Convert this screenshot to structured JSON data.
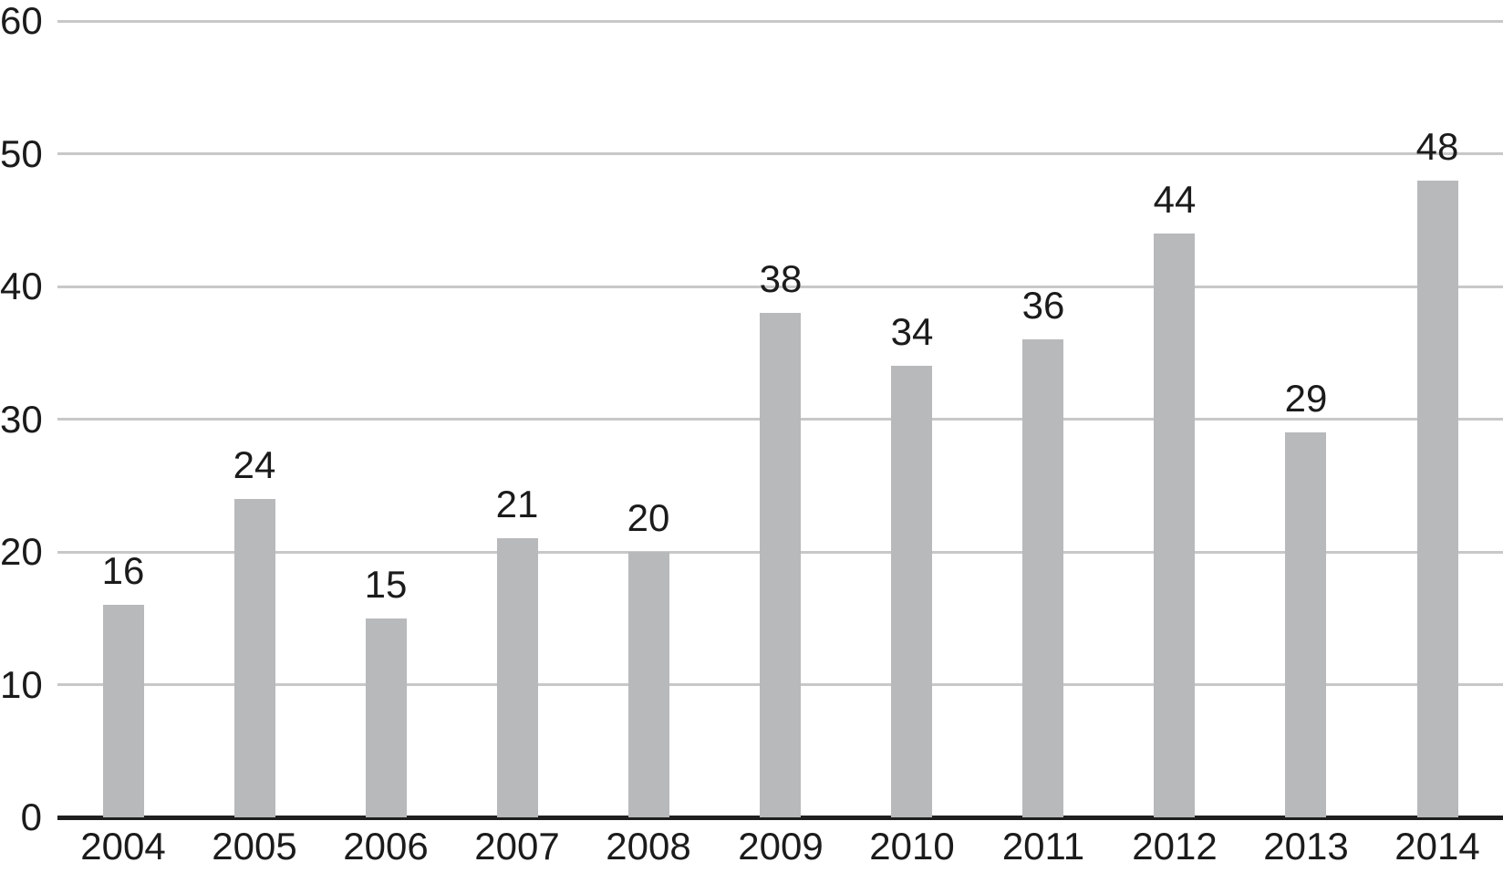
{
  "chart_data": {
    "type": "bar",
    "categories": [
      "2004",
      "2005",
      "2006",
      "2007",
      "2008",
      "2009",
      "2010",
      "2011",
      "2012",
      "2013",
      "2014"
    ],
    "values": [
      16,
      24,
      15,
      21,
      20,
      38,
      34,
      36,
      44,
      29,
      48
    ],
    "value_labels_shown": true,
    "title": "",
    "xlabel": "",
    "ylabel": "",
    "ylim": [
      0,
      60
    ],
    "yticks": [
      0,
      10,
      20,
      30,
      40,
      50,
      60
    ],
    "grid": true,
    "legend": "none",
    "colors": {
      "bar_fill": "#b7b9bb",
      "gridline": "#c8c8c8",
      "axis_line": "#1f1f1f",
      "text": "#1b1b1b"
    }
  }
}
